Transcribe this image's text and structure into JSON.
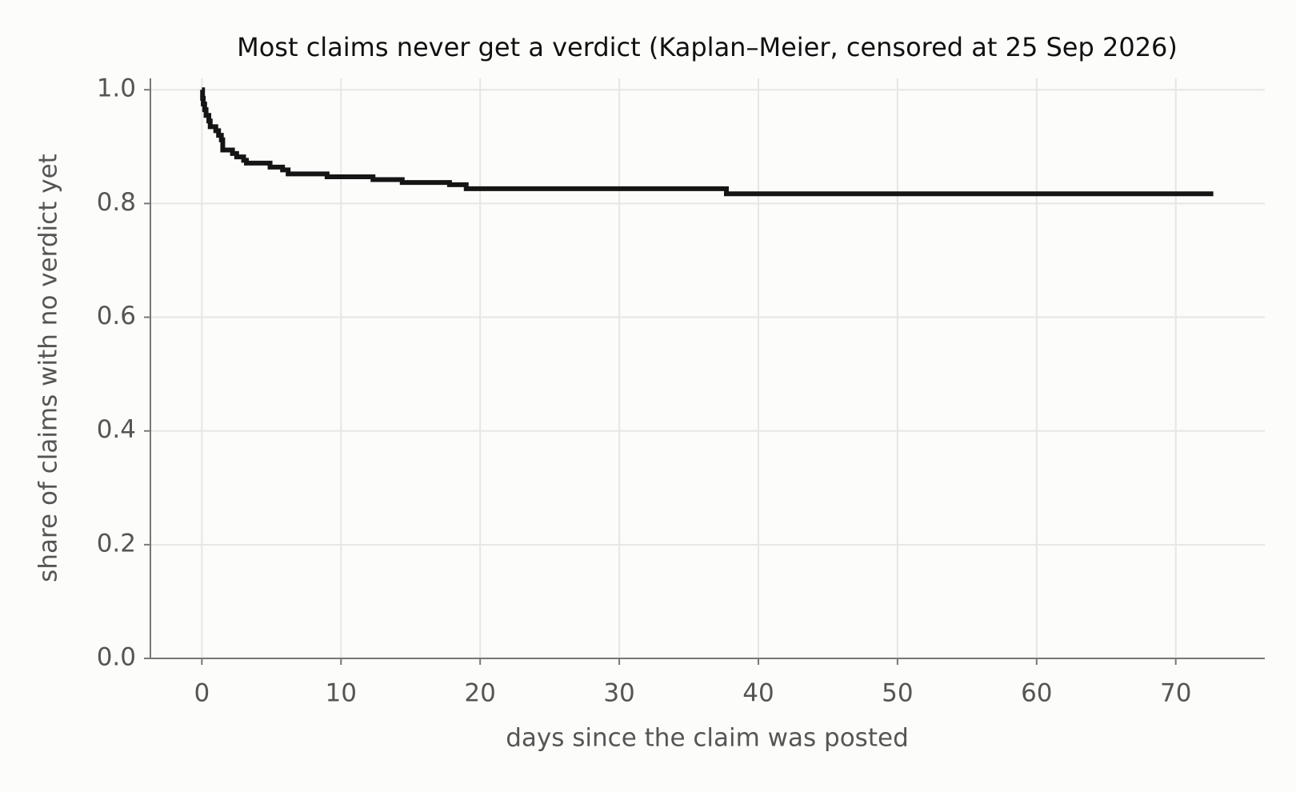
{
  "chart_data": {
    "type": "step",
    "title": "Most claims never get a verdict (Kaplan–Meier, censored at 25 Sep 2026)",
    "x_label": "days since the claim was posted",
    "y_label": "share of claims with no verdict yet",
    "series": [
      {
        "color": "#151515",
        "x": [
          0,
          0.05,
          0.1,
          0.2,
          0.3,
          0.5,
          0.6,
          1.0,
          1.2,
          1.4,
          1.5,
          2.2,
          2.5,
          3.0,
          3.2,
          4.9,
          5.8,
          6.2,
          9.0,
          12.3,
          14.4,
          17.8,
          19.0,
          37.7,
          72.7
        ],
        "values": [
          1.0,
          0.985,
          0.975,
          0.965,
          0.955,
          0.945,
          0.935,
          0.928,
          0.92,
          0.912,
          0.894,
          0.888,
          0.882,
          0.876,
          0.871,
          0.864,
          0.859,
          0.852,
          0.847,
          0.842,
          0.837,
          0.833,
          0.826,
          0.817,
          0.817
        ]
      }
    ],
    "xlim": [
      -3.7,
      76.4
    ],
    "ylim": [
      0,
      1.02
    ],
    "xticks": [
      0,
      10,
      20,
      30,
      40,
      50,
      60,
      70
    ],
    "yticks": [
      {
        "value": 0,
        "label": "0.0"
      },
      0.2,
      0.4,
      0.6,
      0.8,
      {
        "value": 1,
        "label": "1.0"
      }
    ],
    "grid": true
  }
}
